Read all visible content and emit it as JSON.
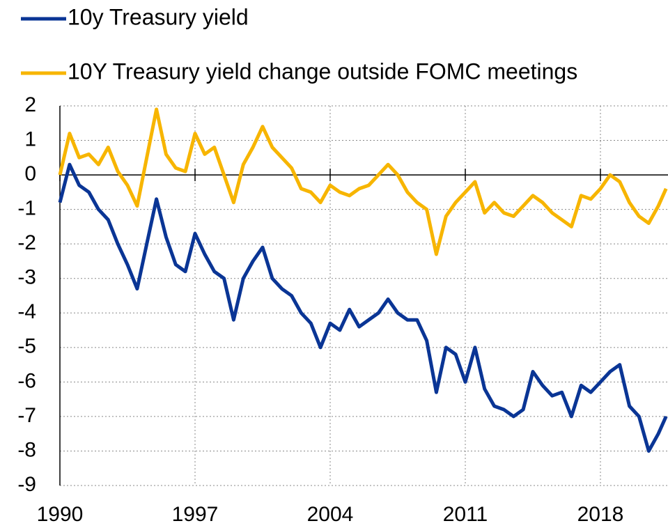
{
  "chart_data": {
    "type": "line",
    "x": [
      1990,
      1990.5,
      1991,
      1991.5,
      1992,
      1992.5,
      1993,
      1993.5,
      1994,
      1994.5,
      1995,
      1995.5,
      1996,
      1996.5,
      1997,
      1997.5,
      1998,
      1998.5,
      1999,
      1999.5,
      2000,
      2000.5,
      2001,
      2001.5,
      2002,
      2002.5,
      2003,
      2003.5,
      2004,
      2004.5,
      2005,
      2005.5,
      2006,
      2006.5,
      2007,
      2007.5,
      2008,
      2008.5,
      2009,
      2009.5,
      2010,
      2010.5,
      2011,
      2011.5,
      2012,
      2012.5,
      2013,
      2013.5,
      2014,
      2014.5,
      2015,
      2015.5,
      2016,
      2016.5,
      2017,
      2017.5,
      2018,
      2018.5,
      2019,
      2019.5,
      2020,
      2020.5,
      2021,
      2021.4
    ],
    "series": [
      {
        "name": "10y Treasury yield",
        "color": "#0a3595",
        "values": [
          -0.8,
          0.3,
          -0.3,
          -0.5,
          -1.0,
          -1.3,
          -2.0,
          -2.6,
          -3.3,
          -2.0,
          -0.7,
          -1.8,
          -2.6,
          -2.8,
          -1.7,
          -2.3,
          -2.8,
          -3.0,
          -4.2,
          -3.0,
          -2.5,
          -2.1,
          -3.0,
          -3.3,
          -3.5,
          -4.0,
          -4.3,
          -5.0,
          -4.3,
          -4.5,
          -3.9,
          -4.4,
          -4.2,
          -4.0,
          -3.6,
          -4.0,
          -4.2,
          -4.2,
          -4.8,
          -6.3,
          -5.0,
          -5.2,
          -6.0,
          -5.0,
          -6.2,
          -6.7,
          -6.8,
          -7.0,
          -6.8,
          -5.7,
          -6.1,
          -6.4,
          -6.3,
          -7.0,
          -6.1,
          -6.3,
          -6.0,
          -5.7,
          -5.5,
          -6.7,
          -7.0,
          -8.0,
          -7.5,
          -7.0
        ]
      },
      {
        "name": "10Y Treasury yield change outside FOMC meetings",
        "color": "#f7b500",
        "values": [
          0,
          1.2,
          0.5,
          0.6,
          0.3,
          0.8,
          0.1,
          -0.3,
          -0.9,
          0.5,
          1.9,
          0.6,
          0.2,
          0.1,
          1.2,
          0.6,
          0.8,
          0.0,
          -0.8,
          0.3,
          0.8,
          1.4,
          0.8,
          0.5,
          0.2,
          -0.4,
          -0.5,
          -0.8,
          -0.3,
          -0.5,
          -0.6,
          -0.4,
          -0.3,
          0.0,
          0.3,
          0.0,
          -0.5,
          -0.8,
          -1.0,
          -2.3,
          -1.2,
          -0.8,
          -0.5,
          -0.2,
          -1.1,
          -0.8,
          -1.1,
          -1.2,
          -0.9,
          -0.6,
          -0.8,
          -1.1,
          -1.3,
          -1.5,
          -0.6,
          -0.7,
          -0.4,
          0.0,
          -0.2,
          -0.8,
          -1.2,
          -1.4,
          -0.9,
          -0.4
        ]
      }
    ],
    "xlim": [
      1990,
      2021.5
    ],
    "xticks": [
      1990,
      1997,
      2004,
      2011,
      2018
    ],
    "ylim": [
      -9,
      2
    ],
    "yticks": [
      -9,
      -8,
      -7,
      -6,
      -5,
      -4,
      -3,
      -2,
      -1,
      0,
      1,
      2
    ],
    "grid": true
  }
}
